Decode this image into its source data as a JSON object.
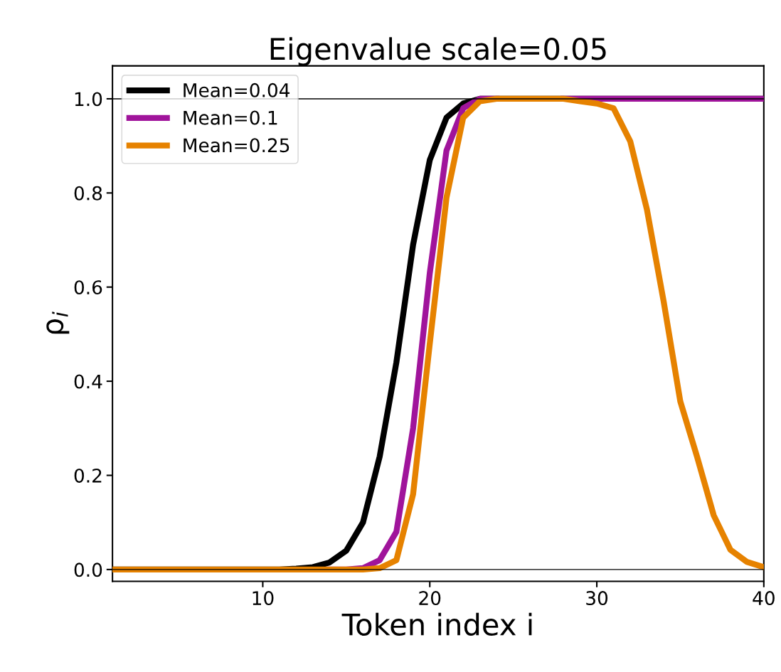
{
  "chart_data": {
    "type": "line",
    "title": "Eigenvalue scale=0.05",
    "xlabel": "Token index i",
    "ylabel": "ρ$_{i}$",
    "x": [
      1,
      2,
      3,
      4,
      5,
      6,
      7,
      8,
      9,
      10,
      11,
      12,
      13,
      14,
      15,
      16,
      17,
      18,
      19,
      20,
      21,
      22,
      23,
      24,
      25,
      26,
      27,
      28,
      29,
      30,
      31,
      32,
      33,
      34,
      35,
      36,
      37,
      38,
      39,
      40
    ],
    "series": [
      {
        "name": "Mean=0.04",
        "color": "#000000",
        "values": [
          0,
          0,
          0,
          0,
          0,
          0,
          0,
          0,
          0,
          0,
          0,
          0.002,
          0.005,
          0.015,
          0.04,
          0.1,
          0.24,
          0.44,
          0.69,
          0.87,
          0.96,
          0.99,
          1.0,
          1.0,
          1.0,
          1.0,
          1.0,
          1.0,
          1.0,
          1.0,
          1.0,
          1.0,
          1.0,
          1.0,
          1.0,
          1.0,
          1.0,
          1.0,
          1.0,
          1.0
        ]
      },
      {
        "name": "Mean=0.1",
        "color": "#a0149b",
        "values": [
          null,
          null,
          null,
          null,
          null,
          null,
          null,
          null,
          null,
          null,
          null,
          null,
          null,
          0,
          0,
          0.003,
          0.02,
          0.08,
          0.3,
          0.63,
          0.89,
          0.98,
          1.0,
          1.0,
          null,
          null,
          null,
          1.0,
          1.0,
          1.0,
          1.0,
          1.0,
          1.0,
          1.0,
          1.0,
          1.0,
          1.0,
          1.0,
          1.0,
          1.0
        ]
      },
      {
        "name": "Mean=0.25",
        "color": "#e68200",
        "values": [
          0,
          0,
          0,
          0,
          0,
          0,
          0,
          0,
          0,
          0,
          0,
          0,
          0,
          0,
          0,
          0,
          0.003,
          0.02,
          0.16,
          0.48,
          0.79,
          0.96,
          0.995,
          1.0,
          1.0,
          1.0,
          1.0,
          1.0,
          0.995,
          0.99,
          0.98,
          0.91,
          0.765,
          0.57,
          0.357,
          0.24,
          0.115,
          0.042,
          0.016,
          0.005
        ]
      }
    ],
    "xlim": [
      1,
      40
    ],
    "ylim": [
      -0.025,
      1.07
    ],
    "xticks": [
      10,
      20,
      30,
      40
    ],
    "yticks": [
      {
        "value": 0,
        "label": "0.0"
      },
      0.2,
      0.4,
      0.6,
      0.8,
      {
        "value": 1,
        "label": "1.0"
      }
    ],
    "ref_lines": [
      {
        "axis": "y",
        "value": 0,
        "color": "#000000"
      },
      {
        "axis": "y",
        "value": 1,
        "color": "#000000"
      }
    ],
    "grid": false,
    "legend": "top left"
  }
}
